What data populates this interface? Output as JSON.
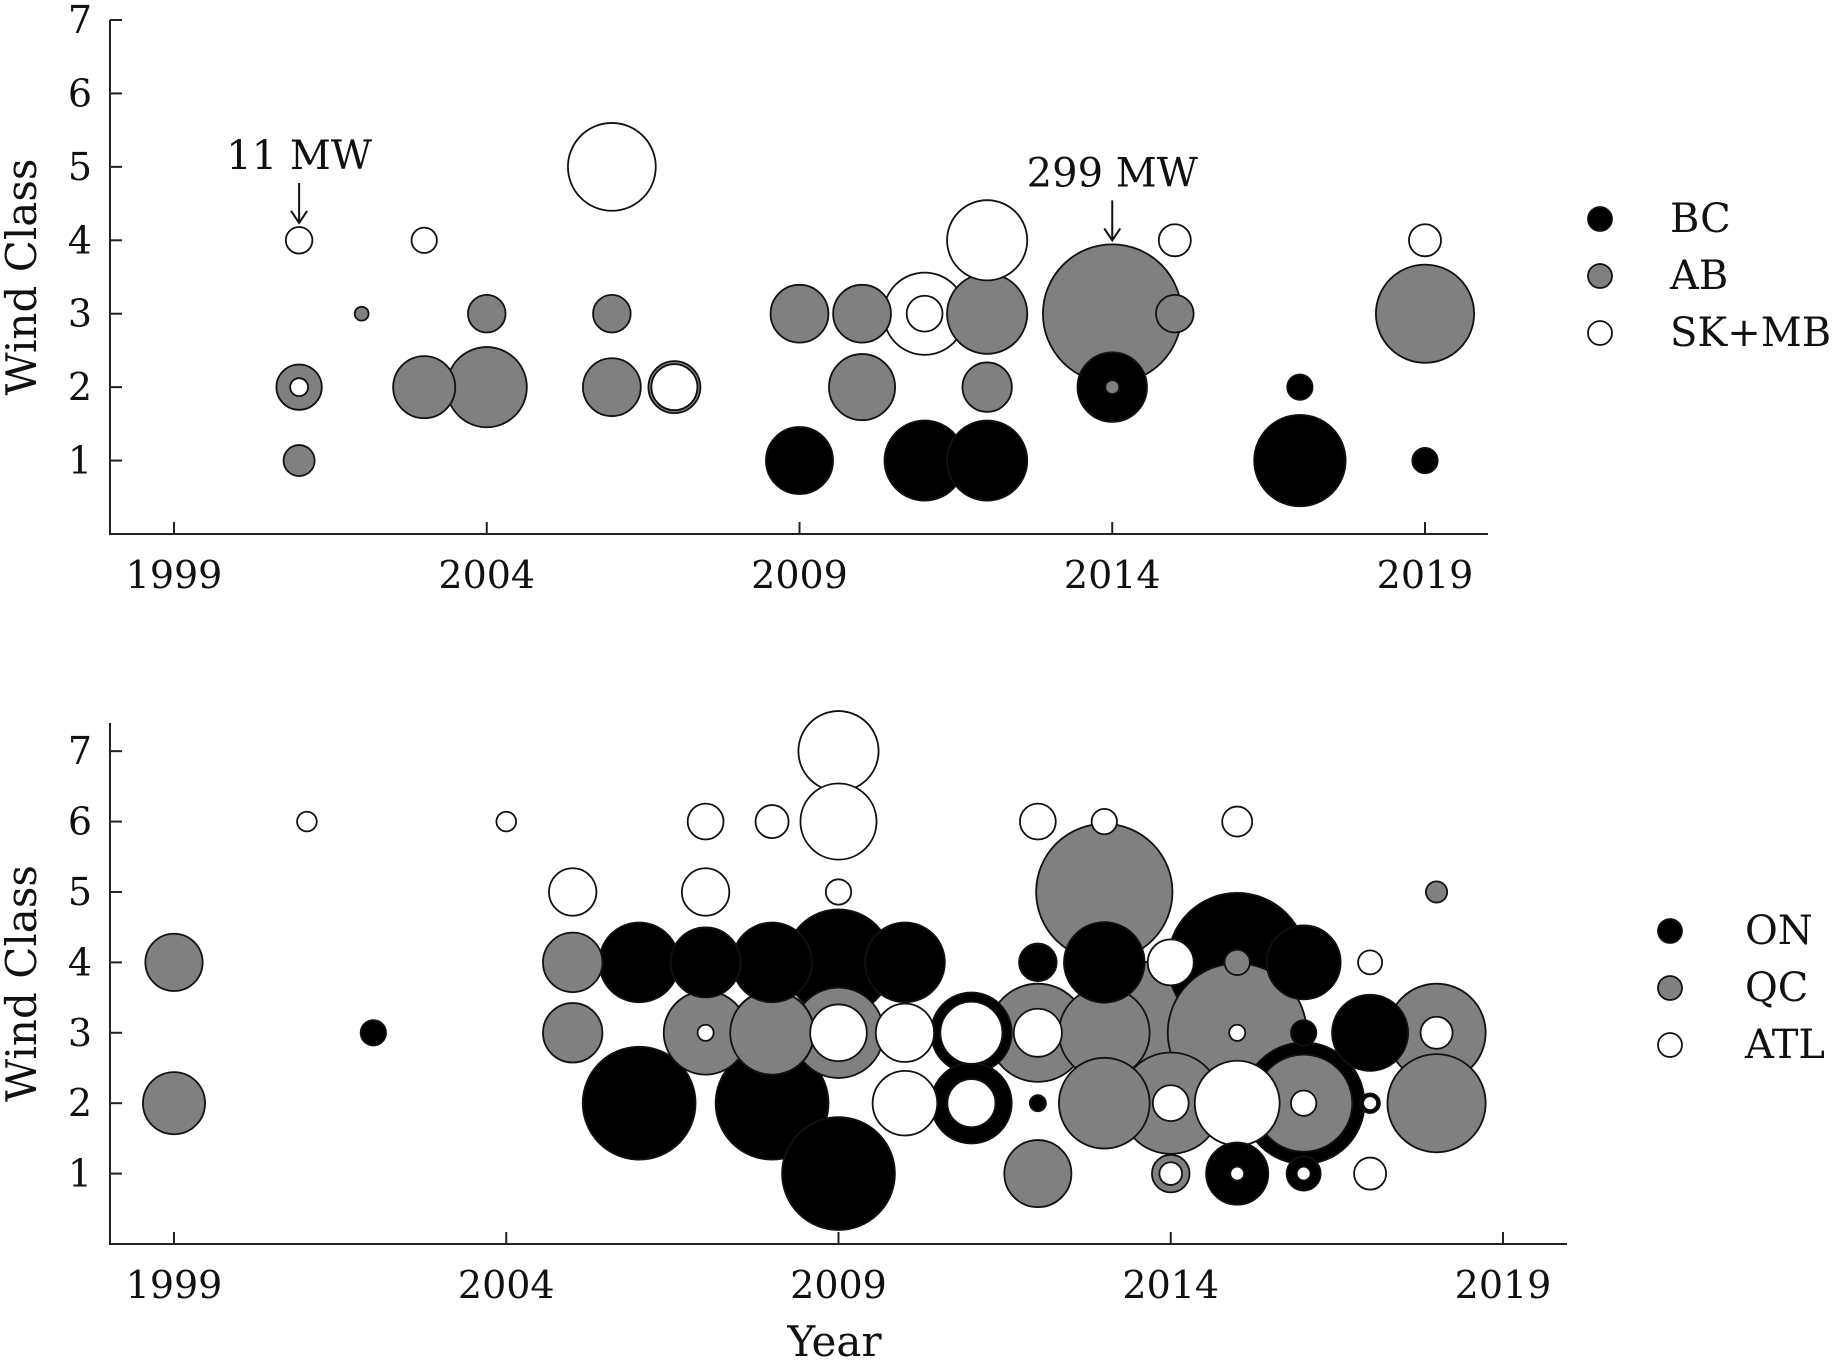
{
  "chart_data": [
    {
      "type": "scatter",
      "xlabel": "",
      "ylabel": "Wind Class",
      "xlim": [
        1997,
        2021
      ],
      "ylim": [
        0,
        7
      ],
      "xticks": [
        1999,
        2004,
        2009,
        2014,
        2019
      ],
      "yticks": [
        1,
        2,
        3,
        4,
        5,
        6,
        7
      ],
      "grid": false,
      "legend_position": "right",
      "series": [
        {
          "name": "BC",
          "color": "#000000",
          "points": [
            {
              "x": 2009,
              "y": 1,
              "mw": 70
            },
            {
              "x": 2011,
              "y": 1,
              "mw": 100
            },
            {
              "x": 2012,
              "y": 1,
              "mw": 100
            },
            {
              "x": 2014,
              "y": 2,
              "mw": 75
            },
            {
              "x": 2017,
              "y": 2,
              "mw": 10
            },
            {
              "x": 2017,
              "y": 1,
              "mw": 130
            },
            {
              "x": 2019,
              "y": 1,
              "mw": 10
            }
          ]
        },
        {
          "name": "AB",
          "color": "#808080",
          "points": [
            {
              "x": 2001,
              "y": 1,
              "mw": 15
            },
            {
              "x": 2001,
              "y": 2,
              "mw": 32
            },
            {
              "x": 2002,
              "y": 3,
              "mw": 3
            },
            {
              "x": 2003,
              "y": 2,
              "mw": 60
            },
            {
              "x": 2004,
              "y": 2,
              "mw": 100
            },
            {
              "x": 2004,
              "y": 3,
              "mw": 22
            },
            {
              "x": 2006,
              "y": 2,
              "mw": 52
            },
            {
              "x": 2006,
              "y": 3,
              "mw": 22
            },
            {
              "x": 2007,
              "y": 2,
              "mw": 42
            },
            {
              "x": 2009,
              "y": 3,
              "mw": 52
            },
            {
              "x": 2010,
              "y": 2,
              "mw": 68
            },
            {
              "x": 2010,
              "y": 3,
              "mw": 52
            },
            {
              "x": 2012,
              "y": 3,
              "mw": 100
            },
            {
              "x": 2012,
              "y": 2,
              "mw": 38
            },
            {
              "x": 2014,
              "y": 3,
              "mw": 299
            },
            {
              "x": 2014,
              "y": 2,
              "mw": 3
            },
            {
              "x": 2015,
              "y": 3,
              "mw": 22
            },
            {
              "x": 2019,
              "y": 3,
              "mw": 150
            }
          ]
        },
        {
          "name": "SK+MB",
          "color": "#ffffff",
          "points": [
            {
              "x": 2001,
              "y": 4,
              "mw": 11
            },
            {
              "x": 2001,
              "y": 2,
              "mw": 5
            },
            {
              "x": 2003,
              "y": 4,
              "mw": 10
            },
            {
              "x": 2006,
              "y": 5,
              "mw": 120
            },
            {
              "x": 2007,
              "y": 2,
              "mw": 33
            },
            {
              "x": 2011,
              "y": 3,
              "mw": 105
            },
            {
              "x": 2011,
              "y": 3,
              "mw": 20
            },
            {
              "x": 2012,
              "y": 4,
              "mw": 100
            },
            {
              "x": 2015,
              "y": 4,
              "mw": 16
            },
            {
              "x": 2019,
              "y": 4,
              "mw": 16
            }
          ]
        }
      ],
      "annotations": [
        {
          "text": "11 MW",
          "x": 2001,
          "y": 4,
          "arrow": true
        },
        {
          "text": "299 MW",
          "x": 2014,
          "y": 3,
          "arrow": true
        }
      ]
    },
    {
      "type": "scatter",
      "xlabel": "Year",
      "ylabel": "Wind Class",
      "xlim": [
        1996.5,
        2021
      ],
      "ylim": [
        0,
        7.4
      ],
      "xticks": [
        1999,
        2004,
        2009,
        2014,
        2019
      ],
      "yticks": [
        1,
        2,
        3,
        4,
        5,
        6,
        7
      ],
      "grid": false,
      "legend_position": "right",
      "series": [
        {
          "name": "ON",
          "color": "#000000",
          "points": [
            {
              "x": 2002,
              "y": 3,
              "mw": 10
            },
            {
              "x": 2006,
              "y": 4,
              "mw": 99
            },
            {
              "x": 2006,
              "y": 2,
              "mw": 198
            },
            {
              "x": 2007,
              "y": 4,
              "mw": 76
            },
            {
              "x": 2008,
              "y": 4,
              "mw": 99
            },
            {
              "x": 2008,
              "y": 2,
              "mw": 198
            },
            {
              "x": 2009,
              "y": 4,
              "mw": 175
            },
            {
              "x": 2009,
              "y": 1,
              "mw": 198
            },
            {
              "x": 2010,
              "y": 4,
              "mw": 99
            },
            {
              "x": 2011,
              "y": 3,
              "mw": 101
            },
            {
              "x": 2011,
              "y": 2,
              "mw": 101
            },
            {
              "x": 2012,
              "y": 4,
              "mw": 22
            },
            {
              "x": 2012,
              "y": 2,
              "mw": 4
            },
            {
              "x": 2013,
              "y": 4,
              "mw": 101
            },
            {
              "x": 2015,
              "y": 4,
              "mw": 300
            },
            {
              "x": 2015,
              "y": 1,
              "mw": 60
            },
            {
              "x": 2016,
              "y": 4,
              "mw": 85
            },
            {
              "x": 2016,
              "y": 3,
              "mw": 10
            },
            {
              "x": 2016,
              "y": 2,
              "mw": 230
            },
            {
              "x": 2016,
              "y": 1,
              "mw": 18
            },
            {
              "x": 2017,
              "y": 3,
              "mw": 90
            },
            {
              "x": 2017,
              "y": 2,
              "mw": 6
            }
          ]
        },
        {
          "name": "QC",
          "color": "#808080",
          "points": [
            {
              "x": 1999,
              "y": 4,
              "mw": 51
            },
            {
              "x": 1999,
              "y": 2,
              "mw": 60
            },
            {
              "x": 2005,
              "y": 4,
              "mw": 55
            },
            {
              "x": 2005,
              "y": 3,
              "mw": 55
            },
            {
              "x": 2007,
              "y": 3,
              "mw": 109
            },
            {
              "x": 2008,
              "y": 3,
              "mw": 109
            },
            {
              "x": 2009,
              "y": 3,
              "mw": 127
            },
            {
              "x": 2012,
              "y": 3,
              "mw": 150
            },
            {
              "x": 2012,
              "y": 1,
              "mw": 70
            },
            {
              "x": 2013,
              "y": 5,
              "mw": 289
            },
            {
              "x": 2013,
              "y": 3,
              "mw": 128
            },
            {
              "x": 2013,
              "y": 2,
              "mw": 128
            },
            {
              "x": 2014,
              "y": 3,
              "mw": 350
            },
            {
              "x": 2014,
              "y": 2,
              "mw": 160
            },
            {
              "x": 2014,
              "y": 1,
              "mw": 22
            },
            {
              "x": 2015,
              "y": 3,
              "mw": 300
            },
            {
              "x": 2015,
              "y": 4,
              "mw": 10
            },
            {
              "x": 2016,
              "y": 2,
              "mw": 147
            },
            {
              "x": 2018,
              "y": 3,
              "mw": 150
            },
            {
              "x": 2018,
              "y": 2,
              "mw": 150
            },
            {
              "x": 2018,
              "y": 5,
              "mw": 7
            }
          ]
        },
        {
          "name": "ATL",
          "color": "#ffffff",
          "points": [
            {
              "x": 2001,
              "y": 6,
              "mw": 6
            },
            {
              "x": 2004,
              "y": 6,
              "mw": 6
            },
            {
              "x": 2005,
              "y": 5,
              "mw": 35
            },
            {
              "x": 2007,
              "y": 6,
              "mw": 20
            },
            {
              "x": 2007,
              "y": 5,
              "mw": 35
            },
            {
              "x": 2007,
              "y": 3,
              "mw": 4
            },
            {
              "x": 2008,
              "y": 6,
              "mw": 17
            },
            {
              "x": 2008,
              "y": 3,
              "mw": 110
            },
            {
              "x": 2009,
              "y": 7,
              "mw": 100
            },
            {
              "x": 2009,
              "y": 6,
              "mw": 90
            },
            {
              "x": 2009,
              "y": 5,
              "mw": 10
            },
            {
              "x": 2009,
              "y": 3,
              "mw": 50
            },
            {
              "x": 2010,
              "y": 3,
              "mw": 53
            },
            {
              "x": 2010,
              "y": 2,
              "mw": 65
            },
            {
              "x": 2011,
              "y": 3,
              "mw": 60
            },
            {
              "x": 2011,
              "y": 2,
              "mw": 36
            },
            {
              "x": 2012,
              "y": 6,
              "mw": 20
            },
            {
              "x": 2012,
              "y": 3,
              "mw": 36
            },
            {
              "x": 2013,
              "y": 6,
              "mw": 10
            },
            {
              "x": 2014,
              "y": 4,
              "mw": 33
            },
            {
              "x": 2014,
              "y": 2,
              "mw": 20
            },
            {
              "x": 2014,
              "y": 1,
              "mw": 8
            },
            {
              "x": 2015,
              "y": 6,
              "mw": 14
            },
            {
              "x": 2015,
              "y": 3,
              "mw": 4
            },
            {
              "x": 2015,
              "y": 2,
              "mw": 112
            },
            {
              "x": 2015,
              "y": 1,
              "mw": 3
            },
            {
              "x": 2016,
              "y": 2,
              "mw": 10
            },
            {
              "x": 2016,
              "y": 1,
              "mw": 3
            },
            {
              "x": 2017,
              "y": 4,
              "mw": 9
            },
            {
              "x": 2017,
              "y": 2,
              "mw": 3
            },
            {
              "x": 2017,
              "y": 1,
              "mw": 16
            },
            {
              "x": 2018,
              "y": 3,
              "mw": 16
            }
          ]
        }
      ]
    }
  ]
}
